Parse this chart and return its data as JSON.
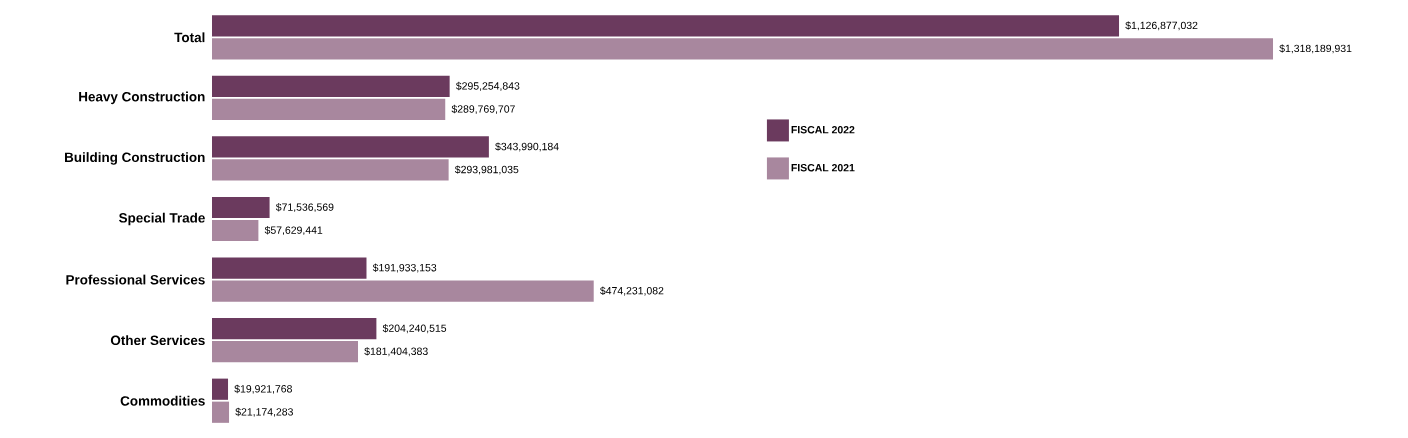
{
  "chart_data": {
    "type": "bar",
    "orientation": "horizontal",
    "categories": [
      "Total",
      "Heavy Construction",
      "Building Construction",
      "Special Trade",
      "Professional Services",
      "Other Services",
      "Commodities"
    ],
    "series": [
      {
        "name": "FISCAL 2022",
        "color": "#6b3a5e",
        "values": [
          1126877032,
          295254843,
          343990184,
          71536569,
          191933153,
          204240515,
          19921768
        ],
        "value_labels": [
          "$1,126,877,032",
          "$295,254,843",
          "$343,990,184",
          "$71,536,569",
          "$191,933,153",
          "$204,240,515",
          "$19,921,768"
        ]
      },
      {
        "name": "FISCAL 2021",
        "color": "#a8879e",
        "values": [
          1318189931,
          289769707,
          293981035,
          57629441,
          474231082,
          181404383,
          21174283
        ],
        "value_labels": [
          "$1,318,189,931",
          "$289,769,707",
          "$293,981,035",
          "$57,629,441",
          "$474,231,082",
          "$181,404,383",
          "$21,174,283"
        ]
      }
    ],
    "legend": "center"
  }
}
